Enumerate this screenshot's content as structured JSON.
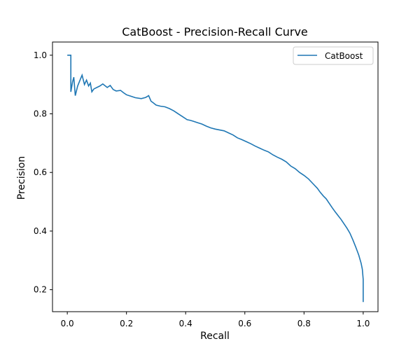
{
  "chart_data": {
    "type": "line",
    "title": "CatBoost - Precision-Recall Curve",
    "xlabel": "Recall",
    "ylabel": "Precision",
    "xlim": [
      -0.05,
      1.05
    ],
    "ylim": [
      0.125,
      1.045
    ],
    "xticks": [
      0.0,
      0.2,
      0.4,
      0.6,
      0.8,
      1.0
    ],
    "xtick_labels": [
      "0.0",
      "0.2",
      "0.4",
      "0.6",
      "0.8",
      "1.0"
    ],
    "yticks": [
      0.2,
      0.4,
      0.6,
      0.8,
      1.0
    ],
    "ytick_labels": [
      "0.2",
      "0.4",
      "0.6",
      "0.8",
      "1.0"
    ],
    "grid": false,
    "legend": {
      "position": "upper right",
      "entries": [
        "CatBoost"
      ]
    },
    "series": [
      {
        "name": "CatBoost",
        "color": "#1f77b4",
        "x": [
          0.0,
          0.012,
          0.012,
          0.012,
          0.018,
          0.022,
          0.027,
          0.035,
          0.045,
          0.05,
          0.058,
          0.065,
          0.072,
          0.078,
          0.083,
          0.09,
          0.1,
          0.11,
          0.12,
          0.135,
          0.145,
          0.155,
          0.165,
          0.18,
          0.19,
          0.2,
          0.215,
          0.23,
          0.25,
          0.265,
          0.275,
          0.283,
          0.29,
          0.3,
          0.315,
          0.33,
          0.345,
          0.36,
          0.375,
          0.39,
          0.405,
          0.415,
          0.425,
          0.44,
          0.455,
          0.47,
          0.485,
          0.5,
          0.515,
          0.53,
          0.545,
          0.56,
          0.575,
          0.59,
          0.605,
          0.62,
          0.635,
          0.65,
          0.665,
          0.68,
          0.695,
          0.71,
          0.725,
          0.74,
          0.755,
          0.77,
          0.785,
          0.8,
          0.815,
          0.83,
          0.845,
          0.855,
          0.865,
          0.875,
          0.885,
          0.895,
          0.905,
          0.915,
          0.925,
          0.935,
          0.945,
          0.955,
          0.965,
          0.975,
          0.985,
          0.993,
          0.997,
          1.0,
          1.0
        ],
        "y": [
          1.0,
          1.0,
          0.96,
          0.875,
          0.91,
          0.925,
          0.862,
          0.895,
          0.92,
          0.932,
          0.9,
          0.915,
          0.895,
          0.905,
          0.875,
          0.885,
          0.89,
          0.895,
          0.902,
          0.89,
          0.897,
          0.883,
          0.878,
          0.88,
          0.872,
          0.865,
          0.86,
          0.855,
          0.852,
          0.856,
          0.862,
          0.843,
          0.838,
          0.83,
          0.826,
          0.824,
          0.818,
          0.81,
          0.8,
          0.79,
          0.78,
          0.778,
          0.775,
          0.77,
          0.765,
          0.758,
          0.752,
          0.748,
          0.745,
          0.742,
          0.735,
          0.728,
          0.718,
          0.712,
          0.705,
          0.698,
          0.69,
          0.683,
          0.676,
          0.67,
          0.66,
          0.652,
          0.645,
          0.636,
          0.622,
          0.613,
          0.6,
          0.59,
          0.578,
          0.562,
          0.546,
          0.532,
          0.52,
          0.51,
          0.495,
          0.48,
          0.466,
          0.453,
          0.44,
          0.425,
          0.41,
          0.393,
          0.37,
          0.345,
          0.318,
          0.29,
          0.27,
          0.235,
          0.158
        ]
      }
    ]
  }
}
